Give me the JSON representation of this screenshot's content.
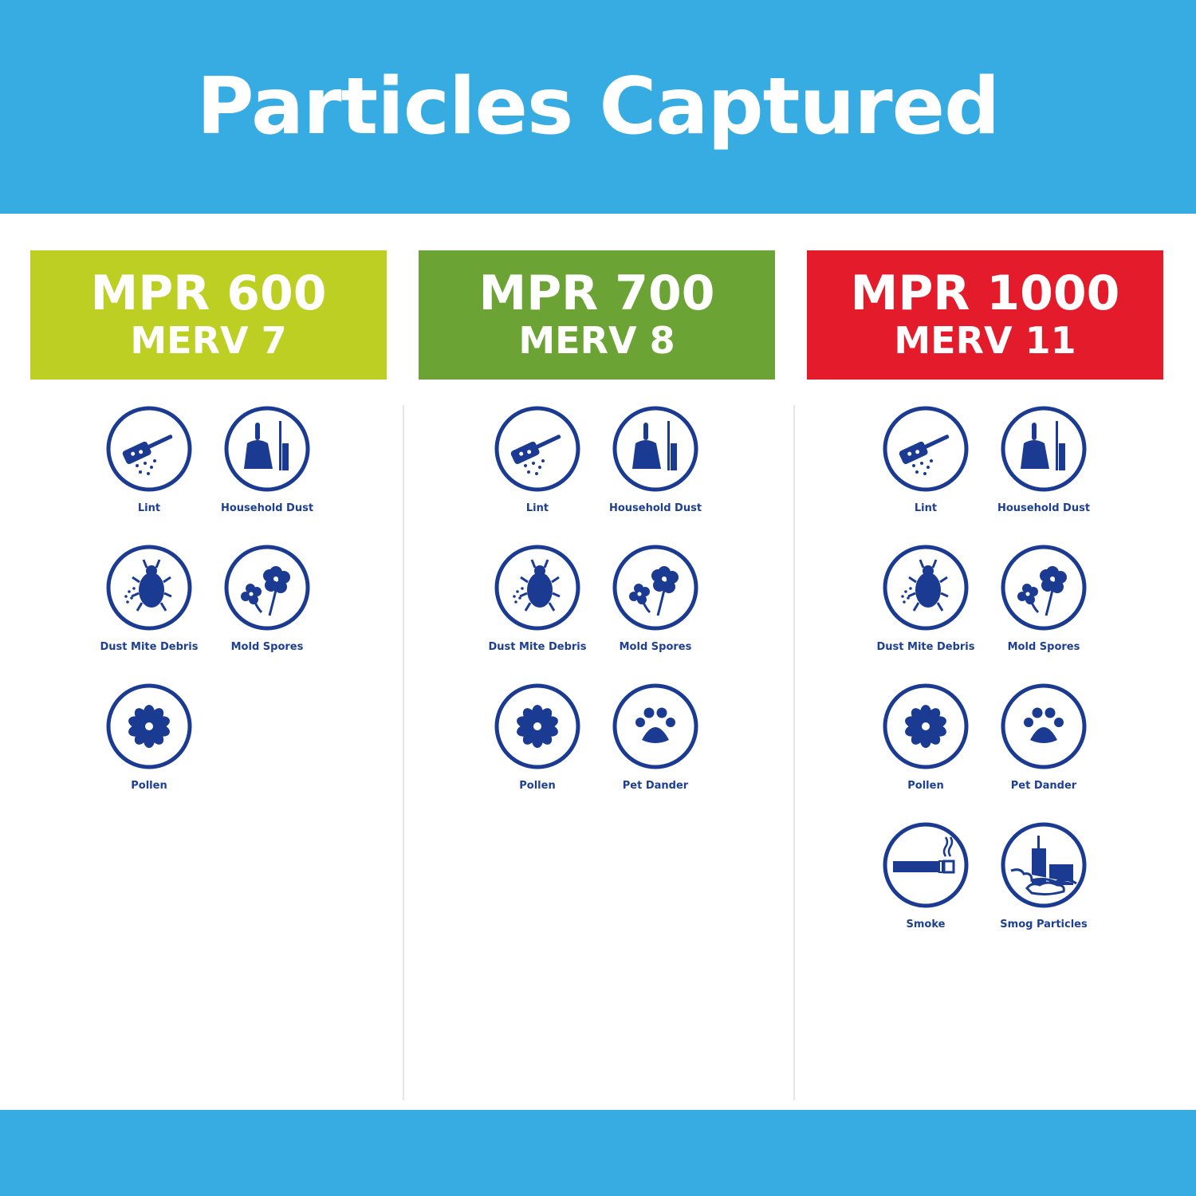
{
  "title": "Particles Captured",
  "colors": {
    "banner": "#36ace2",
    "icon": "#1b3b93"
  },
  "columns": [
    {
      "mpr": "MPR 600",
      "merv": "MERV 7",
      "color": "#bccf22",
      "items": [
        {
          "label": "Lint",
          "icon": "lint-icon"
        },
        {
          "label": "Household Dust",
          "icon": "dustpan-icon"
        },
        {
          "label": "Dust Mite Debris",
          "icon": "dust-mite-icon"
        },
        {
          "label": "Mold Spores",
          "icon": "mold-spores-icon"
        },
        {
          "label": "Pollen",
          "icon": "pollen-icon"
        }
      ]
    },
    {
      "mpr": "MPR 700",
      "merv": "MERV 8",
      "color": "#6ba334",
      "items": [
        {
          "label": "Lint",
          "icon": "lint-icon"
        },
        {
          "label": "Household Dust",
          "icon": "dustpan-icon"
        },
        {
          "label": "Dust Mite Debris",
          "icon": "dust-mite-icon"
        },
        {
          "label": "Mold Spores",
          "icon": "mold-spores-icon"
        },
        {
          "label": "Pollen",
          "icon": "pollen-icon"
        },
        {
          "label": "Pet Dander",
          "icon": "paw-print-icon"
        }
      ]
    },
    {
      "mpr": "MPR 1000",
      "merv": "MERV 11",
      "color": "#e31b2b",
      "items": [
        {
          "label": "Lint",
          "icon": "lint-icon"
        },
        {
          "label": "Household Dust",
          "icon": "dustpan-icon"
        },
        {
          "label": "Dust Mite Debris",
          "icon": "dust-mite-icon"
        },
        {
          "label": "Mold Spores",
          "icon": "mold-spores-icon"
        },
        {
          "label": "Pollen",
          "icon": "pollen-icon"
        },
        {
          "label": "Pet Dander",
          "icon": "paw-print-icon"
        },
        {
          "label": "Smoke",
          "icon": "cigarette-smoke-icon"
        },
        {
          "label": "Smog Particles",
          "icon": "smog-city-icon"
        }
      ]
    }
  ]
}
